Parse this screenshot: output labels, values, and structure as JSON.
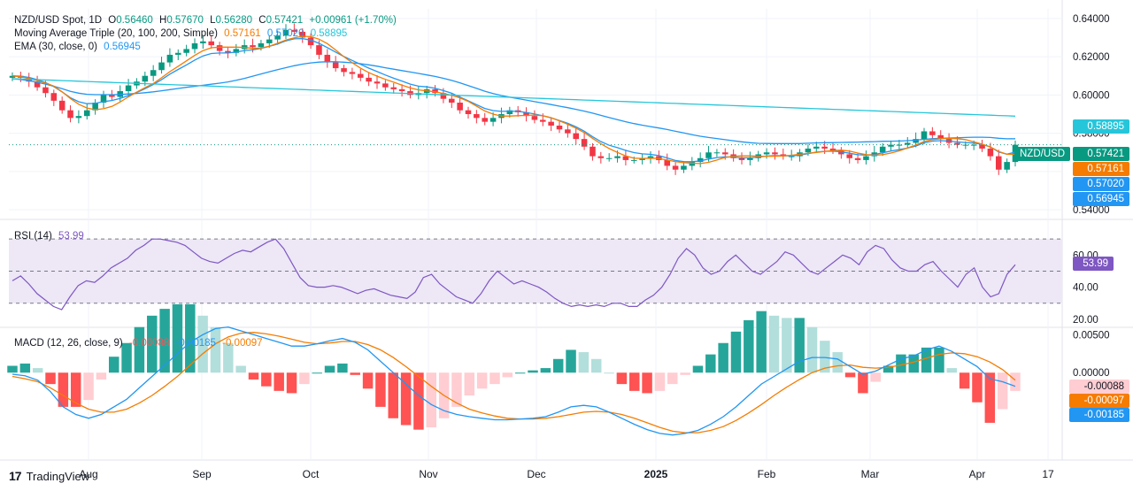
{
  "legend": {
    "symbol": "NZD/USD Spot, 1D",
    "open_label": "O",
    "open": "0.56460",
    "high_label": "H",
    "high": "0.57670",
    "low_label": "L",
    "low": "0.56280",
    "close_label": "C",
    "close": "0.57421",
    "change": "+0.00961 (+1.70%)",
    "ma_title": "Moving Average Triple (20, 100, 200, Simple)",
    "ma20": "0.57161",
    "ma100": "0.57020",
    "ma200": "0.58895",
    "ema_title": "EMA (30, close, 0)",
    "ema": "0.56945",
    "rsi_title": "RSI (14)",
    "rsi": "53.99",
    "macd_title": "MACD (12, 26, close, 9)",
    "macd_hist": "-0.00088",
    "macd_line": "-0.00185",
    "macd_signal": "-0.00097"
  },
  "colors": {
    "up": "#089981",
    "down": "#f23645",
    "ma20": "#f57c00",
    "ma100": "#2196f3",
    "ma200": "#26c6da",
    "ema": "#2196f3",
    "rsi": "#7e57c2",
    "rsi_band": "#ede7f6",
    "macd": "#2196f3",
    "signal": "#f57c00",
    "hist_up_strong": "#26a69a",
    "hist_up_weak": "#b2dfdb",
    "hist_down_strong": "#ff5252",
    "hist_down_weak": "#ffcdd2"
  },
  "price_tags": {
    "ticker": "NZD/USD",
    "close": "0.57421",
    "ma20": "0.57161",
    "ma200": "0.58895",
    "ma100": "0.57020",
    "ema": "0.56945",
    "rsi": "53.99",
    "macd_hist": "-0.00088",
    "macd_signal": "-0.00097",
    "macd_line": "-0.00185"
  },
  "footer": {
    "brand": "TradingView"
  },
  "chart_data": [
    {
      "type": "candlestick",
      "title": "NZD/USD Spot, 1D",
      "x_ticks": [
        "Aug",
        "Sep",
        "Oct",
        "Nov",
        "Dec",
        "2025",
        "Feb",
        "Mar",
        "Apr",
        "17"
      ],
      "y_ticks": [
        "0.54000",
        "0.56000",
        "0.58000",
        "0.60000",
        "0.62000",
        "0.64000"
      ],
      "ylim": [
        0.535,
        0.645
      ],
      "close_series_approx": [
        0.61,
        0.609,
        0.607,
        0.604,
        0.601,
        0.597,
        0.592,
        0.588,
        0.589,
        0.592,
        0.596,
        0.6,
        0.599,
        0.602,
        0.605,
        0.607,
        0.61,
        0.613,
        0.617,
        0.621,
        0.622,
        0.624,
        0.627,
        0.628,
        0.626,
        0.623,
        0.622,
        0.624,
        0.626,
        0.625,
        0.627,
        0.629,
        0.631,
        0.634,
        0.633,
        0.63,
        0.626,
        0.621,
        0.617,
        0.614,
        0.612,
        0.611,
        0.609,
        0.607,
        0.606,
        0.604,
        0.603,
        0.602,
        0.6,
        0.601,
        0.603,
        0.601,
        0.598,
        0.596,
        0.592,
        0.59,
        0.588,
        0.586,
        0.588,
        0.59,
        0.592,
        0.591,
        0.589,
        0.587,
        0.586,
        0.584,
        0.582,
        0.58,
        0.577,
        0.573,
        0.568,
        0.567,
        0.567,
        0.568,
        0.566,
        0.566,
        0.567,
        0.568,
        0.566,
        0.563,
        0.561,
        0.563,
        0.565,
        0.567,
        0.57,
        0.57,
        0.569,
        0.567,
        0.566,
        0.567,
        0.569,
        0.57,
        0.569,
        0.568,
        0.568,
        0.57,
        0.572,
        0.573,
        0.572,
        0.571,
        0.569,
        0.567,
        0.566,
        0.568,
        0.57,
        0.573,
        0.574,
        0.574,
        0.575,
        0.577,
        0.581,
        0.579,
        0.577,
        0.575,
        0.574,
        0.574,
        0.574,
        0.572,
        0.568,
        0.561,
        0.565,
        0.574
      ],
      "series": [
        {
          "name": "MA 20",
          "last": 0.57161
        },
        {
          "name": "MA 100",
          "last": 0.5702
        },
        {
          "name": "MA 200",
          "last": 0.58895
        },
        {
          "name": "EMA 30",
          "last": 0.56945
        }
      ]
    },
    {
      "type": "line",
      "title": "RSI (14)",
      "y_ticks": [
        "20.00",
        "40.00",
        "60.00"
      ],
      "ylim": [
        15,
        80
      ],
      "band": [
        30,
        70
      ],
      "values": [
        44,
        47,
        42,
        36,
        32,
        28,
        26,
        34,
        41,
        44,
        43,
        47,
        52,
        55,
        58,
        63,
        66,
        70,
        70,
        69,
        68,
        66,
        62,
        58,
        56,
        55,
        58,
        61,
        63,
        62,
        65,
        68,
        70,
        64,
        55,
        46,
        41,
        40,
        40,
        41,
        40,
        38,
        36,
        38,
        39,
        37,
        35,
        34,
        33,
        37,
        46,
        48,
        42,
        38,
        34,
        32,
        30,
        36,
        44,
        50,
        46,
        42,
        44,
        42,
        40,
        37,
        33,
        30,
        28,
        29,
        28,
        29,
        28,
        30,
        30,
        28,
        28,
        32,
        35,
        40,
        48,
        58,
        64,
        60,
        52,
        48,
        50,
        56,
        60,
        55,
        50,
        48,
        52,
        56,
        62,
        60,
        55,
        50,
        48,
        52,
        56,
        60,
        58,
        54,
        62,
        66,
        64,
        57,
        52,
        50,
        50,
        54,
        56,
        50,
        45,
        40,
        48,
        52,
        40,
        34,
        36,
        48,
        54
      ]
    },
    {
      "type": "bar",
      "title": "MACD (12, 26, close, 9)",
      "y_ticks": [
        "0.00500",
        "0.00000"
      ],
      "ylim": [
        -0.0115,
        0.0055
      ],
      "macd_line": [
        -0.0002,
        -0.0004,
        -0.001,
        -0.0025,
        -0.0045,
        -0.0055,
        -0.006,
        -0.0055,
        -0.0045,
        -0.0035,
        -0.002,
        -0.0005,
        0.001,
        0.0025,
        0.004,
        0.005,
        0.0058,
        0.006,
        0.0055,
        0.005,
        0.0045,
        0.004,
        0.0035,
        0.0035,
        0.0038,
        0.0042,
        0.0045,
        0.004,
        0.003,
        0.0015,
        0.0,
        -0.0015,
        -0.003,
        -0.0042,
        -0.005,
        -0.0055,
        -0.0058,
        -0.006,
        -0.0062,
        -0.0062,
        -0.0061,
        -0.006,
        -0.0058,
        -0.0052,
        -0.0045,
        -0.0043,
        -0.0045,
        -0.0052,
        -0.006,
        -0.0068,
        -0.0075,
        -0.008,
        -0.0082,
        -0.008,
        -0.0076,
        -0.0068,
        -0.0058,
        -0.0045,
        -0.003,
        -0.0015,
        -0.0005,
        0.0005,
        0.0015,
        0.002,
        0.002,
        0.0018,
        0.0008,
        -0.0002,
        0.0002,
        0.001,
        0.0018,
        0.0022,
        0.003,
        0.0035,
        0.0028,
        0.0018,
        0.0008,
        -0.0008,
        -0.0012,
        -0.0018
      ],
      "signal_line": [
        -0.0005,
        -0.0008,
        -0.0012,
        -0.002,
        -0.003,
        -0.004,
        -0.0048,
        -0.0052,
        -0.0052,
        -0.0048,
        -0.004,
        -0.003,
        -0.0018,
        -0.0005,
        0.001,
        0.0025,
        0.0038,
        0.0047,
        0.0052,
        0.0053,
        0.0051,
        0.0048,
        0.0044,
        0.004,
        0.0038,
        0.0039,
        0.0041,
        0.0041,
        0.0037,
        0.003,
        0.002,
        0.0008,
        -0.0005,
        -0.0018,
        -0.003,
        -0.004,
        -0.0048,
        -0.0053,
        -0.0057,
        -0.006,
        -0.0061,
        -0.0061,
        -0.006,
        -0.0058,
        -0.0055,
        -0.0052,
        -0.0051,
        -0.0052,
        -0.0055,
        -0.006,
        -0.0066,
        -0.0072,
        -0.0077,
        -0.0079,
        -0.0079,
        -0.0076,
        -0.0071,
        -0.0063,
        -0.0053,
        -0.0042,
        -0.003,
        -0.0019,
        -0.0009,
        0.0,
        0.0006,
        0.0009,
        0.001,
        0.0007,
        0.0006,
        0.0007,
        0.001,
        0.0014,
        0.0019,
        0.0024,
        0.0026,
        0.0025,
        0.0021,
        0.0014,
        0.0004,
        -0.001
      ]
    }
  ]
}
